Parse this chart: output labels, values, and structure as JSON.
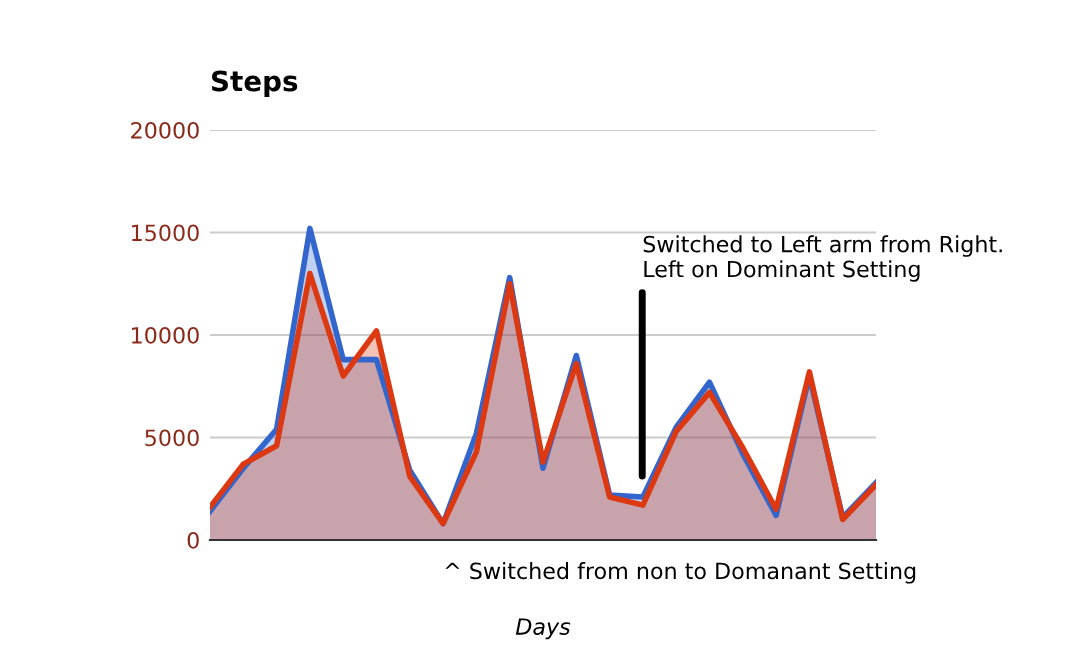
{
  "chart_data": {
    "type": "area",
    "title": "Steps",
    "xlabel": "Days",
    "categories": [
      null,
      null,
      null,
      null,
      null,
      null,
      null,
      null,
      null,
      null,
      null,
      null,
      null,
      null,
      null,
      null,
      null,
      null,
      null,
      null,
      null
    ],
    "series": [
      {
        "color": "#3366cc",
        "values": [
          1400,
          3500,
          5400,
          15200,
          8800,
          8800,
          3400,
          800,
          5200,
          12800,
          3500,
          9000,
          2200,
          2100,
          5500,
          7700,
          4200,
          1200,
          8000,
          1100,
          2800
        ]
      },
      {
        "color": "#dc3912",
        "values": [
          1600,
          3700,
          4600,
          13000,
          8000,
          10200,
          3100,
          800,
          4300,
          12500,
          3800,
          8600,
          2100,
          1700,
          5300,
          7200,
          4500,
          1500,
          8200,
          1000,
          2700
        ]
      }
    ],
    "ylim": [
      0,
      20000
    ],
    "yticks": [
      0,
      5000,
      10000,
      15000,
      20000
    ],
    "grid": "y",
    "tick_labels": "y",
    "annotations": [
      "Switched to Left arm from Right.\nLeft on Dominant Setting",
      "^ Switched from non to Domanant Setting"
    ]
  }
}
